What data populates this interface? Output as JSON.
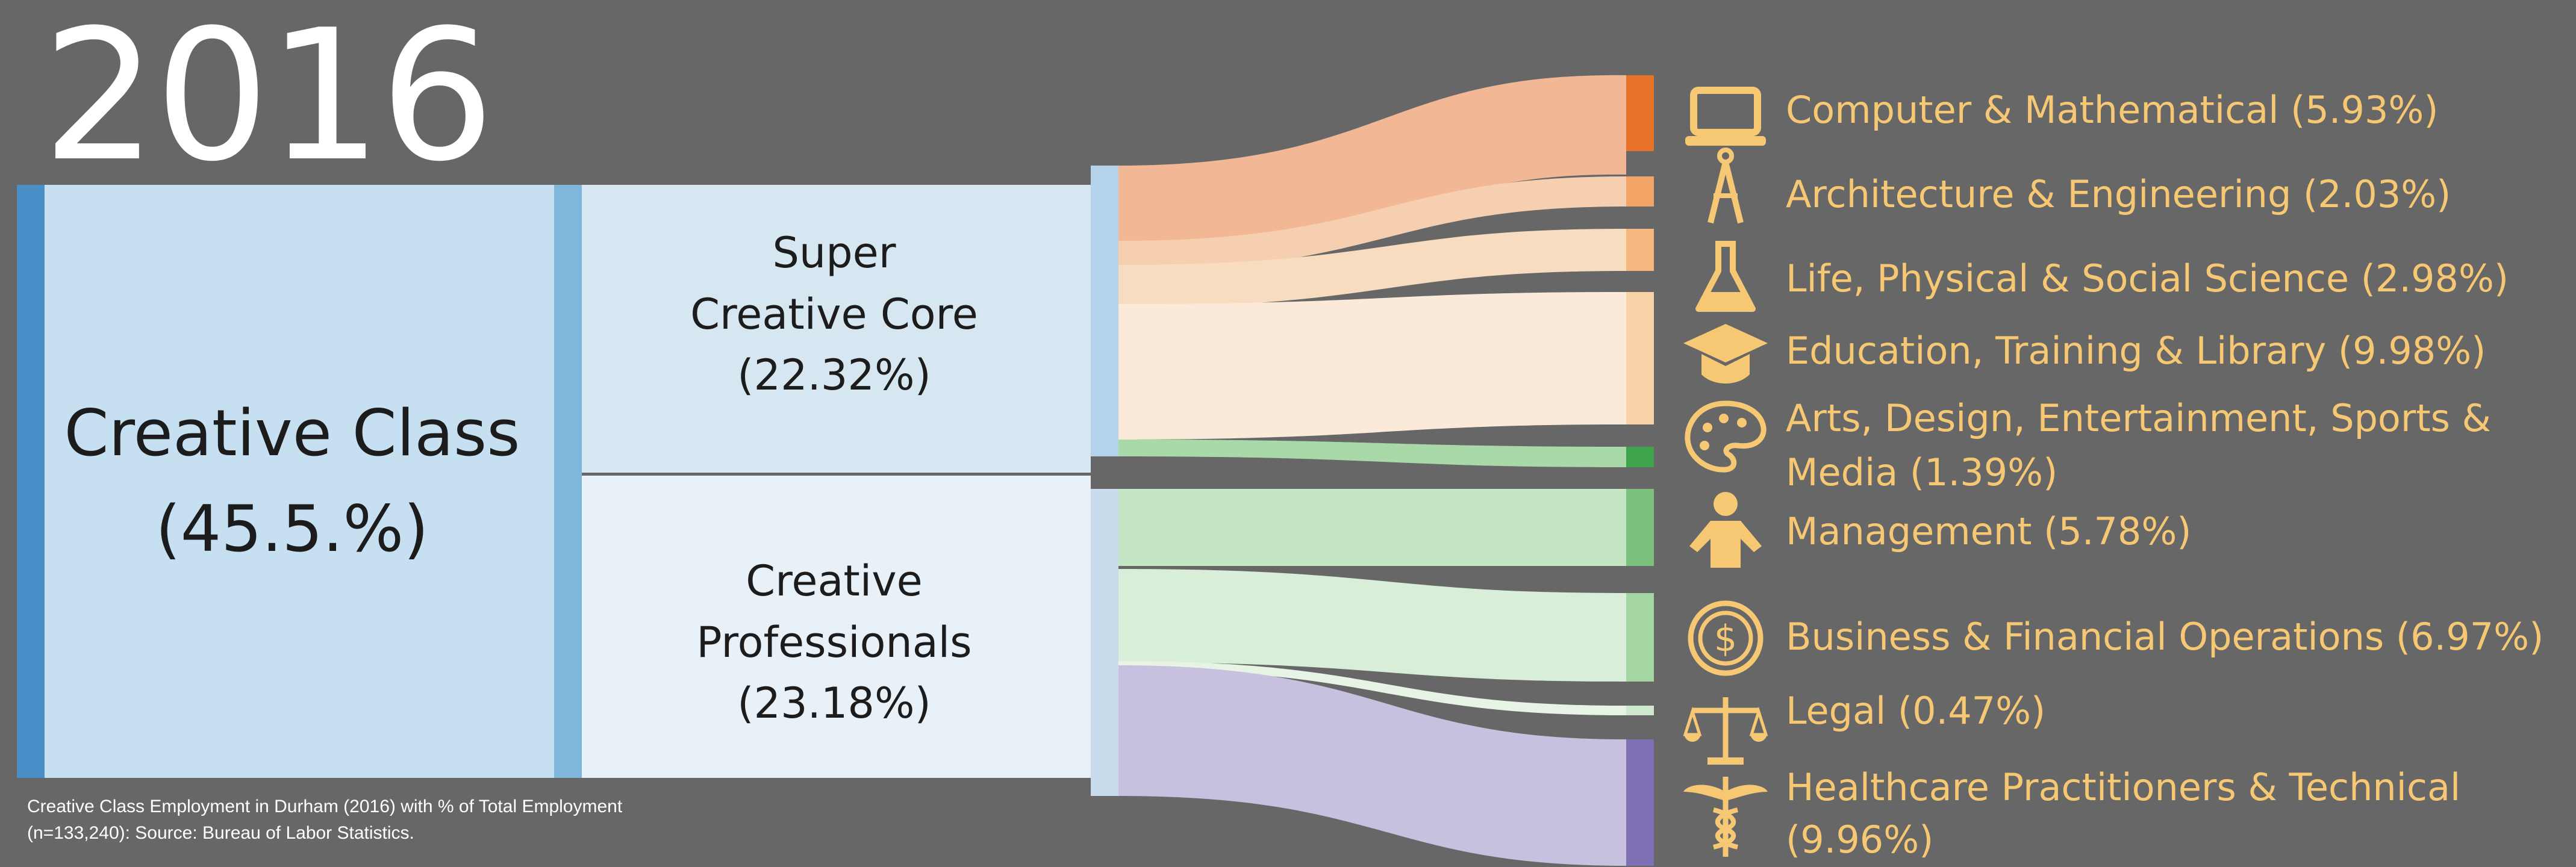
{
  "year": "2016",
  "nodes": {
    "creative_class": {
      "title": "Creative Class",
      "value": "(45.5.%)",
      "color": "#c6dff1",
      "bar_color": "#4a90c8"
    },
    "super_creative_core": {
      "title_line1": "Super",
      "title_line2": "Creative Core",
      "value": "(22.32%)",
      "color": "#d7e7f2"
    },
    "creative_professionals": {
      "title_line1": "Creative",
      "title_line2": "Professionals",
      "value": "(23.18%)",
      "color": "#e8f0f8"
    }
  },
  "categories": [
    {
      "label": "Computer & Mathematical (5.93%)",
      "icon": "laptop-icon",
      "bar_color": "#e8712a",
      "flow_color": "#f2b896"
    },
    {
      "label": "Architecture & Engineering (2.03%)",
      "icon": "compass-icon",
      "bar_color": "#f2a566",
      "flow_color": "#f6cfb0"
    },
    {
      "label": "Life, Physical & Social Science (2.98%)",
      "icon": "flask-icon",
      "bar_color": "#f4b77d",
      "flow_color": "#f8dcc0"
    },
    {
      "label": "Education, Training & Library (9.98%)",
      "icon": "graduation-cap-icon",
      "bar_color": "#f8d3a8",
      "flow_color": "#fbeada"
    },
    {
      "label_line1": "Arts, Design, Entertainment, Sports &",
      "label_line2": "Media (1.39%)",
      "icon": "palette-icon",
      "bar_color": "#3fa34d",
      "flow_color": "#a9d9a8"
    },
    {
      "label": "Management (5.78%)",
      "icon": "person-icon",
      "bar_color": "#7cc27e",
      "flow_color": "#c5e6c5"
    },
    {
      "label": "Business & Financial Operations (6.97%)",
      "icon": "dollar-coin-icon",
      "bar_color": "#a4d6a3",
      "flow_color": "#d9eed8"
    },
    {
      "label": "Legal (0.47%)",
      "icon": "scales-icon",
      "bar_color": "#cfe9ce",
      "flow_color": "#e6f3e5"
    },
    {
      "label_line1": "Healthcare Practitioners & Technical",
      "label_line2": "(9.96%)",
      "icon": "caduceus-icon",
      "bar_color": "#7f6fb5",
      "flow_color": "#c7c0de"
    }
  ],
  "footnote": {
    "line1": "Creative Class Employment in Durham (2016) with % of Total Employment",
    "line2": "(n=133,240): Source: Bureau of Labor Statistics."
  },
  "colors": {
    "background": "#676767",
    "legend_text": "#f7c873",
    "icon": "#f7c873"
  }
}
